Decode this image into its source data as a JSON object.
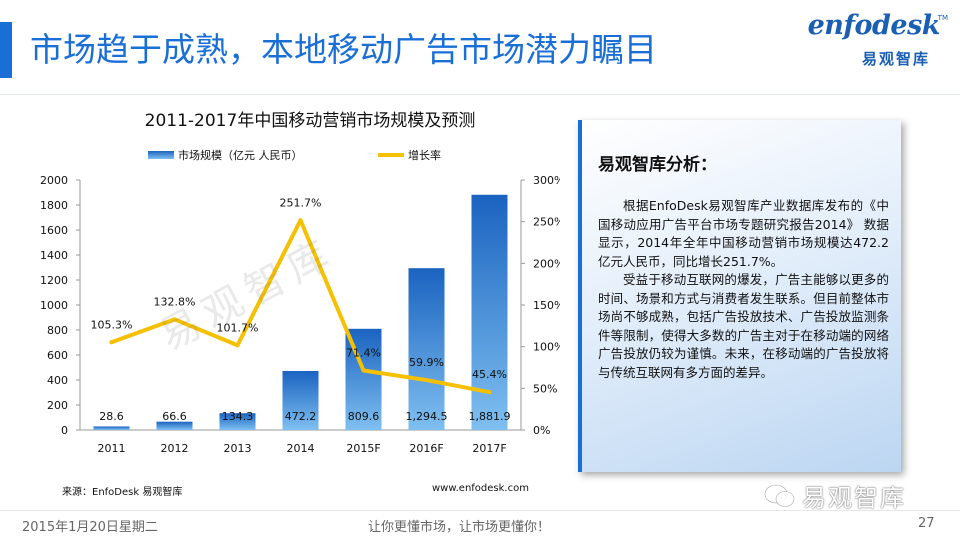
{
  "slide": {
    "title": "市场趋于成熟，本地移动广告市场潜力瞩目"
  },
  "logo": {
    "brand": "enfodesk",
    "tm": "TM",
    "brand_cn": "易观智库"
  },
  "chart_data": {
    "type": "bar",
    "title": "2011-2017年中国移动营销市场规模及预测",
    "categories": [
      "2011",
      "2012",
      "2013",
      "2014",
      "2015F",
      "2016F",
      "2017F"
    ],
    "series": [
      {
        "name": "市场规模（亿元 人民币）",
        "type": "bar",
        "axis": "left",
        "values": [
          28.6,
          66.6,
          134.3,
          472.2,
          809.6,
          1294.5,
          1881.9
        ],
        "labels": [
          "28.6",
          "66.6",
          "134.3",
          "472.2",
          "809.6",
          "1,294.5",
          "1,881.9"
        ],
        "color": "#1f73c8"
      },
      {
        "name": "增长率",
        "type": "line",
        "axis": "right",
        "values": [
          105.3,
          132.8,
          101.7,
          251.7,
          71.4,
          59.9,
          45.4
        ],
        "labels": [
          "105.3%",
          "132.8%",
          "101.7%",
          "251.7%",
          "71.4%",
          "59.9%",
          "45.4%"
        ],
        "color": "#f5c000"
      }
    ],
    "y_left": {
      "ticks": [
        0,
        200,
        400,
        600,
        800,
        1000,
        1200,
        1400,
        1600,
        1800,
        2000
      ],
      "range": [
        0,
        2000
      ]
    },
    "y_right": {
      "ticks": [
        "0%",
        "50%",
        "100%",
        "150%",
        "200%",
        "250%",
        "300%"
      ],
      "range": [
        0,
        300
      ]
    },
    "legend_position": "top",
    "grid": false
  },
  "chart_watermark": "易观智库",
  "source_note": "来源：EnfoDesk 易观智库",
  "website": "www.enfodesk.com",
  "analysis": {
    "heading": "易观智库分析：",
    "paragraphs": [
      "根据EnfoDesk易观智库产业数据库发布的《中国移动应用广告平台市场专题研究报告2014》 数据显示，2014年全年中国移动营销市场规模达472.2亿元人民币，同比增长251.7%。",
      "受益于移动互联网的爆发，广告主能够以更多的时间、场景和方式与消费者发生联系。但目前整体市场尚不够成熟，包括广告投放技术、广告投放监测条件等限制，使得大多数的广告主对于在移动端的网络广告投放仍较为谨慎。未来，在移动端的广告投放将与传统互联网有多方面的差异。"
    ]
  },
  "wechat_watermark": "易观智库",
  "footer": {
    "date": "2015年1月20日星期二",
    "slogan": "让你更懂市场，让市场更懂你！",
    "page": "27"
  }
}
